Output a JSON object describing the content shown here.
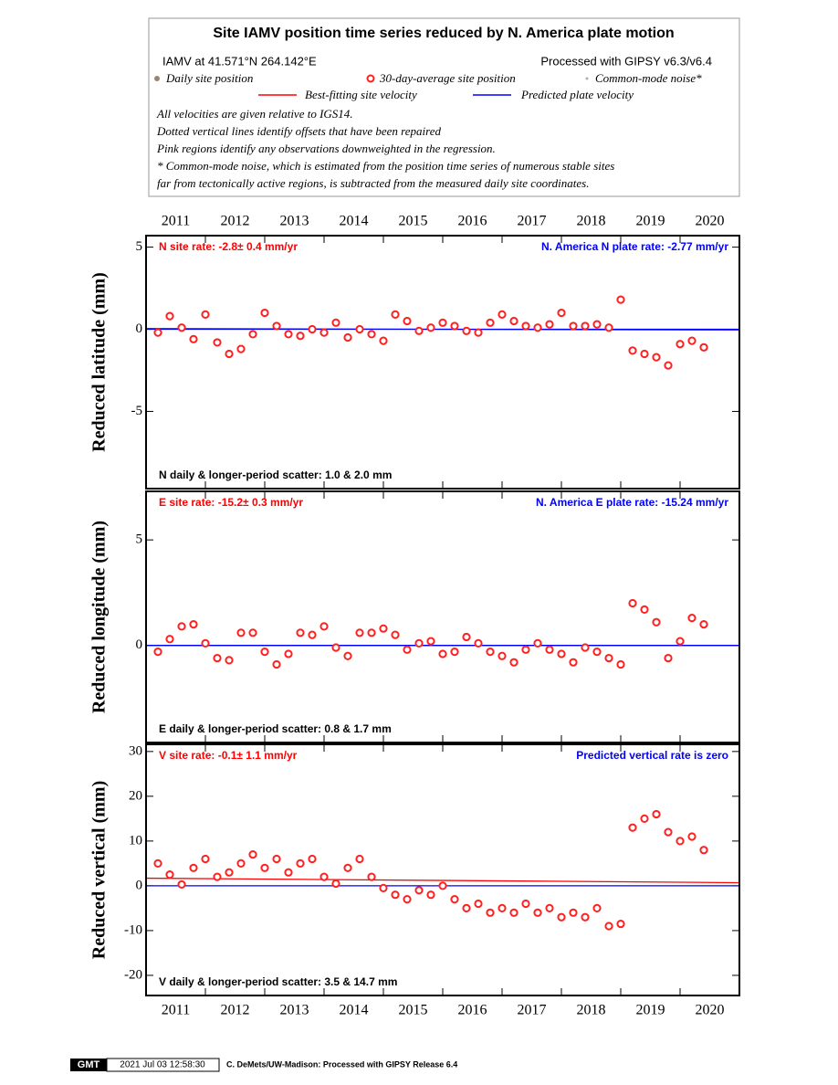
{
  "header": {
    "title": "Site IAMV position time series reduced by N. America plate motion",
    "location": "IAMV at 41.571°N 264.142°E",
    "processing": "Processed with GIPSY v6.3/v6.4",
    "legend": [
      {
        "name": "Daily site position",
        "color": "#9a8670"
      },
      {
        "name": "30-day-average site position",
        "color": "#ff2020"
      },
      {
        "name": "Common-mode noise*",
        "color": "#b0b0b0"
      },
      {
        "name": "Best-fitting site velocity",
        "color": "#ff0000"
      },
      {
        "name": "Predicted plate velocity",
        "color": "#0000ff"
      }
    ],
    "notes": [
      "All velocities are given relative to IGS14.",
      "Dotted vertical lines identify offsets that have been repaired",
      "Pink regions identify any observations downweighted in the regression.",
      "* Common-mode noise, which is estimated from the position time series of numerous stable sites",
      "far from tectonically active regions, is subtracted from the measured daily site coordinates."
    ]
  },
  "chart_data": [
    {
      "type": "scatter",
      "ylabel": "Reduced latitude (mm)",
      "rate_label": "N site rate:  -2.8± 0.4 mm/yr",
      "plate_label": "N. America N plate rate: -2.77 mm/yr",
      "scatter_label": "N daily & longer-period scatter:   1.0 &   2.0 mm",
      "xlim": [
        2011.0,
        2021.0
      ],
      "xticks": [
        2011,
        2012,
        2013,
        2014,
        2015,
        2016,
        2017,
        2018,
        2019,
        2020
      ],
      "ylim": [
        -9.7,
        5.7
      ],
      "yticks": [
        -5,
        0,
        5
      ],
      "series": [
        {
          "style": "marker",
          "color": "#ff2020",
          "x": [
            2011.2,
            2011.4,
            2011.6,
            2011.8,
            2012.0,
            2012.2,
            2012.4,
            2012.6,
            2012.8,
            2013.0,
            2013.2,
            2013.4,
            2013.6,
            2013.8,
            2014.0,
            2014.2,
            2014.4,
            2014.6,
            2014.8,
            2015.0,
            2015.2,
            2015.4,
            2015.6,
            2015.8,
            2016.0,
            2016.2,
            2016.4,
            2016.6,
            2016.8,
            2017.0,
            2017.2,
            2017.4,
            2017.6,
            2017.8,
            2018.0,
            2018.2,
            2018.4,
            2018.6,
            2018.8,
            2019.0,
            2019.2,
            2019.4,
            2019.6,
            2019.8,
            2020.0,
            2020.2,
            2020.4
          ],
          "values": [
            -0.2,
            0.8,
            0.1,
            -0.6,
            0.9,
            -0.8,
            -1.5,
            -1.2,
            -0.3,
            1.0,
            0.2,
            -0.3,
            -0.4,
            0.0,
            -0.2,
            0.4,
            -0.5,
            0.0,
            -0.3,
            -0.7,
            0.9,
            0.5,
            -0.1,
            0.1,
            0.4,
            0.2,
            -0.1,
            -0.2,
            0.4,
            0.9,
            0.5,
            0.2,
            0.1,
            0.3,
            1.0,
            0.2,
            0.2,
            0.3,
            0.1,
            1.8,
            -1.3,
            -1.5,
            -1.7,
            -2.2,
            -0.9,
            -0.7,
            -1.1
          ]
        },
        {
          "style": "line",
          "color": "#ff0000",
          "x": [
            2011.0,
            2021.0
          ],
          "values": [
            0.05,
            -0.05
          ]
        },
        {
          "style": "line",
          "color": "#0000ff",
          "x": [
            2011.0,
            2021.0
          ],
          "values": [
            0,
            0
          ]
        }
      ]
    },
    {
      "type": "scatter",
      "ylabel": "Reduced longitude (mm)",
      "rate_label": "E site rate:  -15.2± 0.3 mm/yr",
      "plate_label": "N. America E plate rate: -15.24 mm/yr",
      "scatter_label": "E daily & longer-period scatter:   0.8 &   1.7 mm",
      "xlim": [
        2011.0,
        2021.0
      ],
      "xticks": [
        2011,
        2012,
        2013,
        2014,
        2015,
        2016,
        2017,
        2018,
        2019,
        2020
      ],
      "ylim": [
        -4.6,
        7.3
      ],
      "yticks": [
        0,
        5
      ],
      "series": [
        {
          "style": "marker",
          "color": "#ff2020",
          "x": [
            2011.2,
            2011.4,
            2011.6,
            2011.8,
            2012.0,
            2012.2,
            2012.4,
            2012.6,
            2012.8,
            2013.0,
            2013.2,
            2013.4,
            2013.6,
            2013.8,
            2014.0,
            2014.2,
            2014.4,
            2014.6,
            2014.8,
            2015.0,
            2015.2,
            2015.4,
            2015.6,
            2015.8,
            2016.0,
            2016.2,
            2016.4,
            2016.6,
            2016.8,
            2017.0,
            2017.2,
            2017.4,
            2017.6,
            2017.8,
            2018.0,
            2018.2,
            2018.4,
            2018.6,
            2018.8,
            2019.0,
            2019.2,
            2019.4,
            2019.6,
            2019.8,
            2020.0,
            2020.2,
            2020.4
          ],
          "values": [
            -0.3,
            0.3,
            0.9,
            1.0,
            0.1,
            -0.6,
            -0.7,
            0.6,
            0.6,
            -0.3,
            -0.9,
            -0.4,
            0.6,
            0.5,
            0.9,
            -0.1,
            -0.5,
            0.6,
            0.6,
            0.8,
            0.5,
            -0.2,
            0.1,
            0.2,
            -0.4,
            -0.3,
            0.4,
            0.1,
            -0.3,
            -0.5,
            -0.8,
            -0.2,
            0.1,
            -0.2,
            -0.4,
            -0.8,
            -0.1,
            -0.3,
            -0.6,
            -0.9,
            2.0,
            1.7,
            1.1,
            -0.6,
            0.2,
            1.3,
            1.0
          ]
        },
        {
          "style": "line",
          "color": "#ff0000",
          "x": [
            2011.0,
            2021.0
          ],
          "values": [
            0,
            0
          ]
        },
        {
          "style": "line",
          "color": "#0000ff",
          "x": [
            2011.0,
            2021.0
          ],
          "values": [
            0,
            0
          ]
        }
      ]
    },
    {
      "type": "scatter",
      "ylabel": "Reduced vertical (mm)",
      "rate_label": "V site rate:  -0.1± 1.1 mm/yr",
      "plate_label": "Predicted vertical rate is zero",
      "scatter_label": "V daily & longer-period scatter:   3.5 &  14.7 mm",
      "xlim": [
        2011.0,
        2021.0
      ],
      "xticks": [
        2011,
        2012,
        2013,
        2014,
        2015,
        2016,
        2017,
        2018,
        2019,
        2020
      ],
      "ylim": [
        -24.5,
        31.6
      ],
      "yticks": [
        -20,
        -10,
        0,
        10,
        20,
        30
      ],
      "series": [
        {
          "style": "marker",
          "color": "#ff2020",
          "x": [
            2011.2,
            2011.4,
            2011.6,
            2011.8,
            2012.0,
            2012.2,
            2012.4,
            2012.6,
            2012.8,
            2013.0,
            2013.2,
            2013.4,
            2013.6,
            2013.8,
            2014.0,
            2014.2,
            2014.4,
            2014.6,
            2014.8,
            2015.0,
            2015.2,
            2015.4,
            2015.6,
            2015.8,
            2016.0,
            2016.2,
            2016.4,
            2016.6,
            2016.8,
            2017.0,
            2017.2,
            2017.4,
            2017.6,
            2017.8,
            2018.0,
            2018.2,
            2018.4,
            2018.6,
            2018.8,
            2019.0,
            2019.2,
            2019.4,
            2019.6,
            2019.8,
            2020.0,
            2020.2,
            2020.4
          ],
          "values": [
            5,
            2.5,
            0.3,
            4,
            6,
            2,
            3,
            5,
            7,
            4,
            6,
            3,
            5,
            6,
            2,
            0.5,
            4,
            6,
            2,
            -0.5,
            -2,
            -3,
            -1,
            -2,
            0,
            -3,
            -5,
            -4,
            -6,
            -5,
            -6,
            -4,
            -6,
            -5,
            -7,
            -6,
            -7,
            -5,
            -9,
            -8.5,
            13,
            15,
            16,
            12,
            10,
            11,
            8
          ]
        },
        {
          "style": "line",
          "color": "#ff0000",
          "x": [
            2011.0,
            2021.0
          ],
          "values": [
            1.7,
            0.7
          ]
        },
        {
          "style": "line",
          "color": "#0000ff",
          "x": [
            2011.0,
            2021.0
          ],
          "values": [
            0,
            0
          ]
        }
      ]
    }
  ],
  "footer": {
    "logo": "GMT",
    "timestamp": "2021 Jul 03 12:58:30",
    "credit": "C. DeMets/UW-Madison: Processed with GIPSY Release 6.4"
  }
}
